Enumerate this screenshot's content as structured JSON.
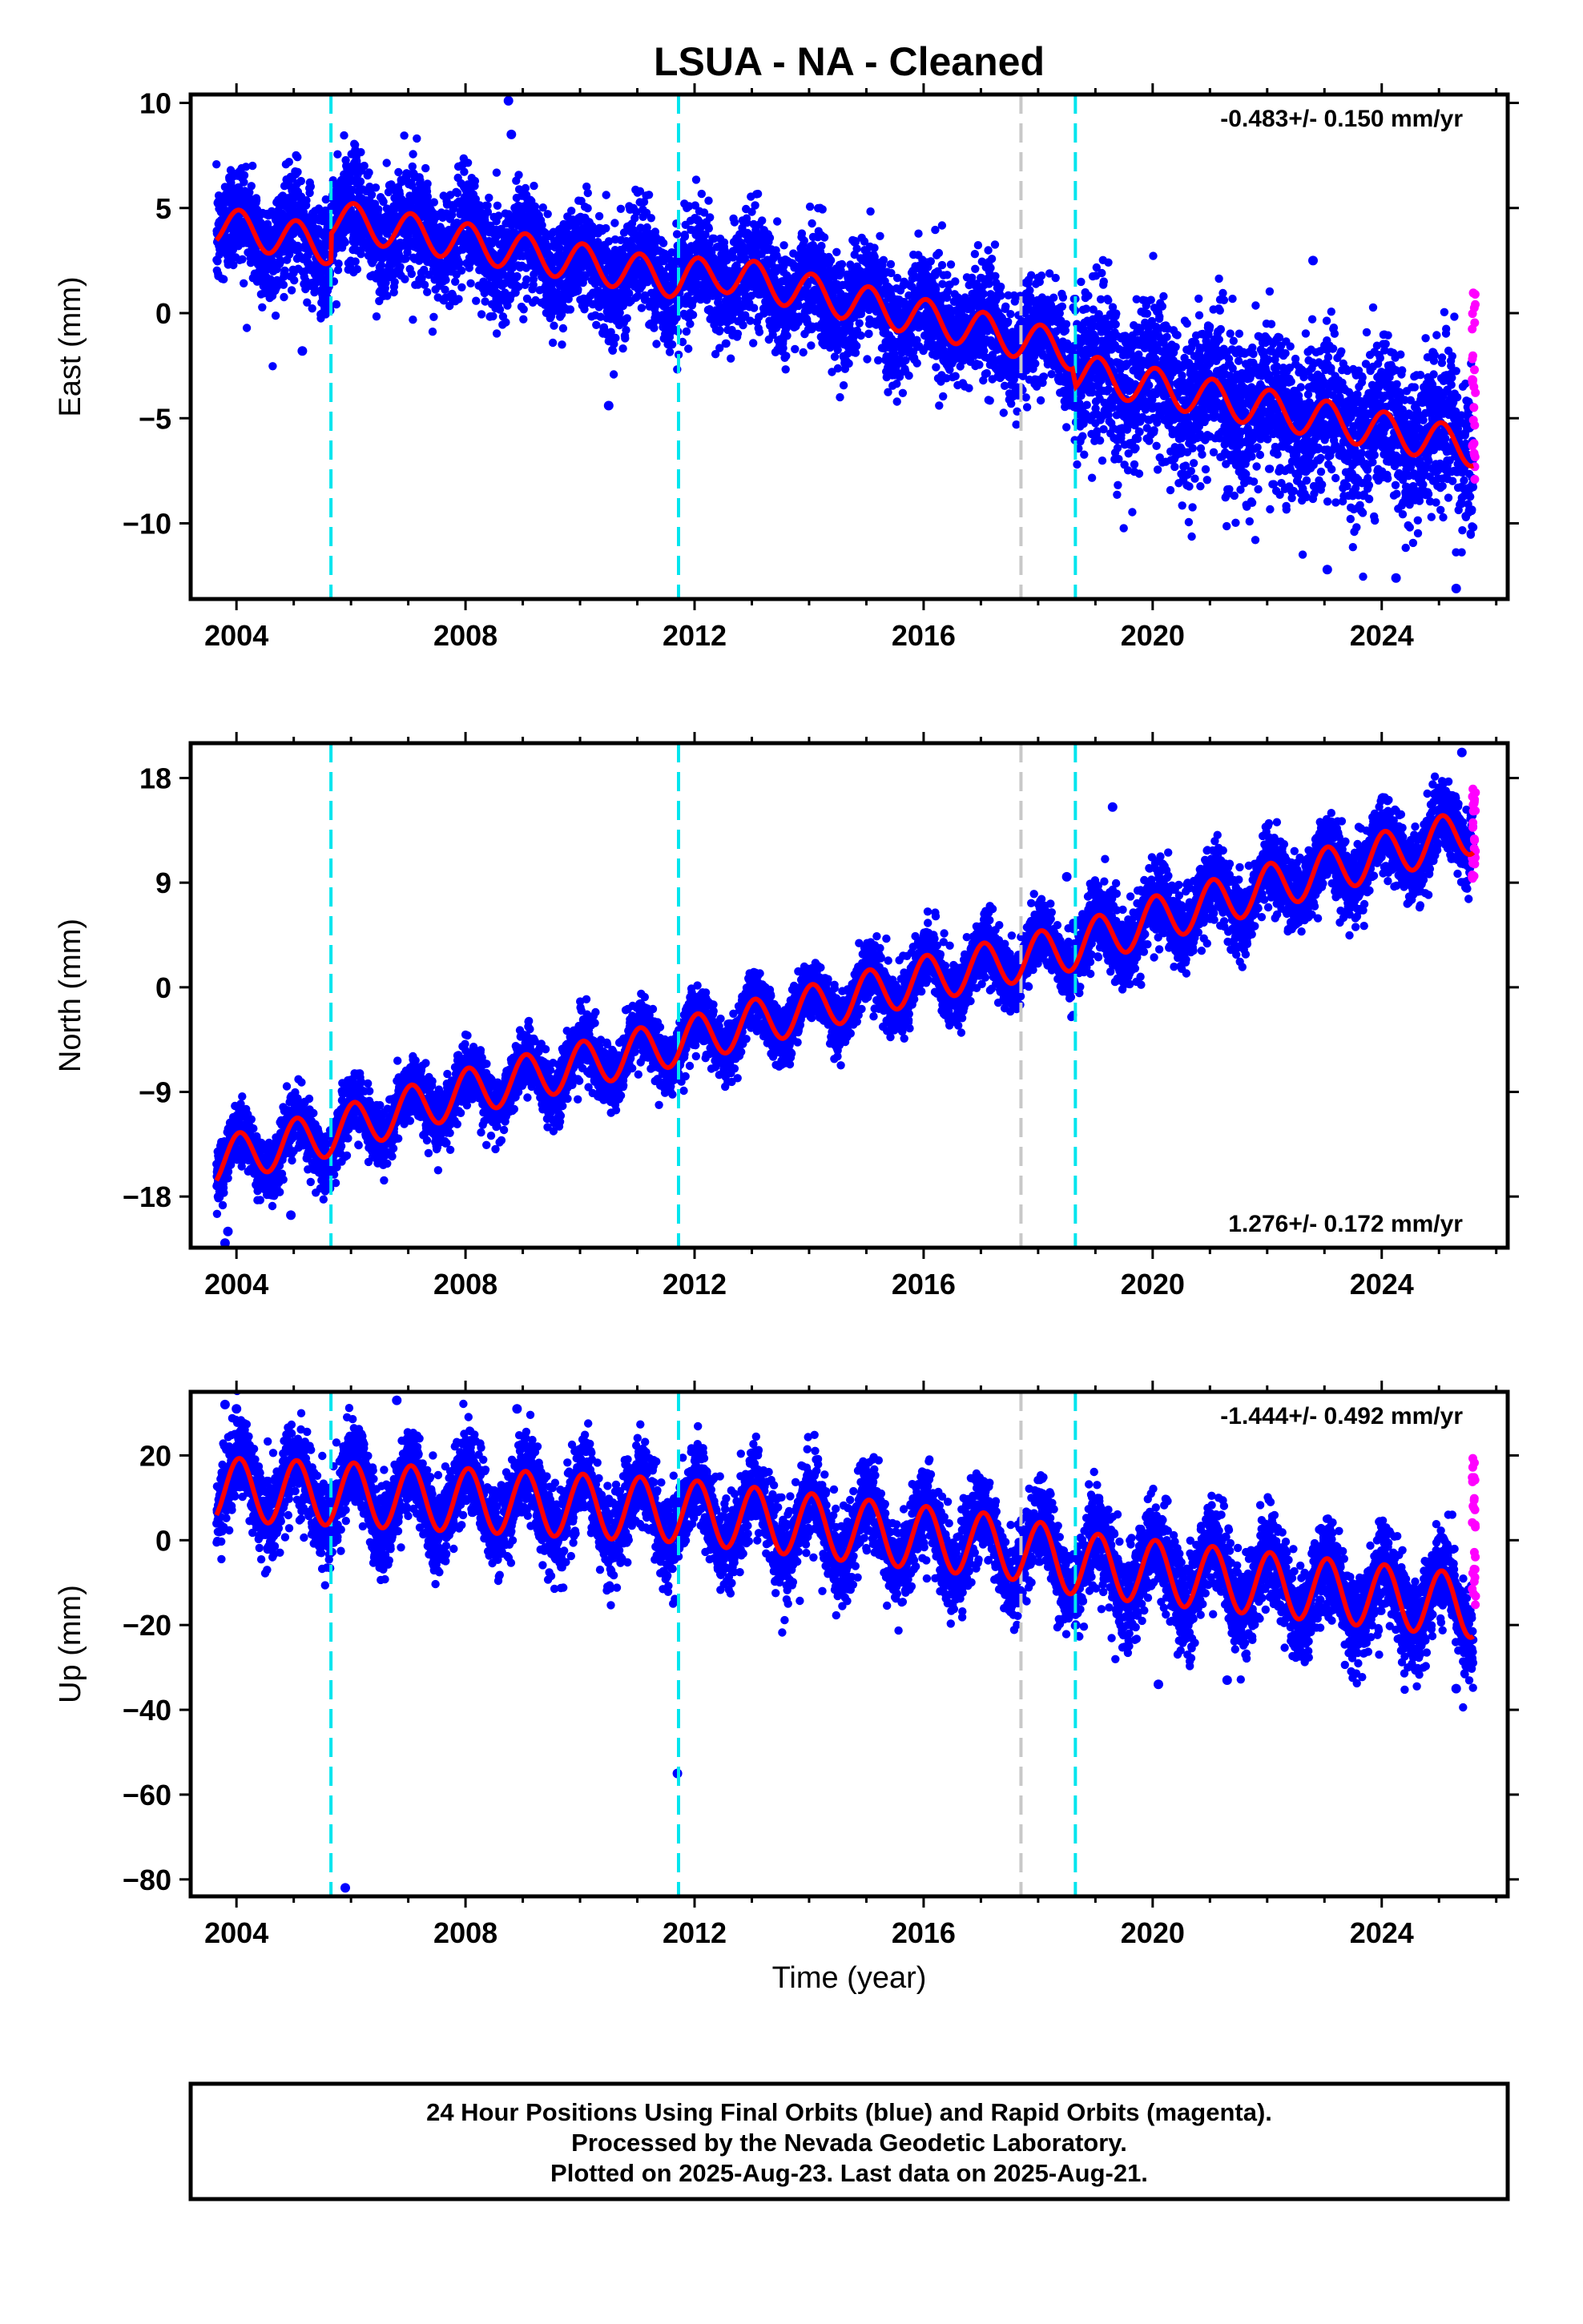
{
  "title": "LSUA  - NA - Cleaned",
  "x_label": "Time (year)",
  "footer": {
    "line1": "24 Hour Positions Using Final Orbits (blue) and Rapid Orbits (magenta).",
    "line2": "Processed by the Nevada Geodetic Laboratory.",
    "line3": "Plotted on 2025-Aug-23. Last data on 2025-Aug-21."
  },
  "colors": {
    "final_orbit_points": "#0000ff",
    "rapid_orbit_points": "#ff00ff",
    "model_fit": "#ff0000",
    "equipment_change_lines": "#00e5ee",
    "other_event_lines": "#c8c8c8"
  },
  "chart_data": [
    {
      "type": "scatter",
      "component": "east",
      "ylabel": "East (mm)",
      "rate_text": "-0.483+/- 0.150 mm/yr",
      "rate_position": "top-right",
      "xlim": [
        2003.2,
        2026.2
      ],
      "ylim": [
        -13.6,
        10.4
      ],
      "yticks": [
        -10,
        -5,
        0,
        5,
        10
      ],
      "ytick_labels": [
        "−10",
        "−5",
        "0",
        "5",
        "10"
      ],
      "xticks": [
        2004,
        2008,
        2012,
        2016,
        2020,
        2024
      ],
      "xtick_labels": [
        "2004",
        "2008",
        "2012",
        "2016",
        "2020",
        "2024"
      ],
      "vertical_lines": {
        "cyan_dashed": [
          2005.65,
          2011.72,
          2018.65
        ],
        "gray_dashed": [
          2017.7
        ]
      },
      "data_start": 2003.65,
      "data_end": 2025.6,
      "trend_points": [
        [
          2003.65,
          4.2
        ],
        [
          2005.65,
          3.2
        ],
        [
          2005.66,
          4.5
        ],
        [
          2011.72,
          1.6
        ],
        [
          2012.5,
          1.9
        ],
        [
          2018.6,
          -1.8
        ],
        [
          2018.66,
          -2.8
        ],
        [
          2025.6,
          -6.4
        ]
      ],
      "seasonal_amplitude": 0.9,
      "scatter_sd": 1.3,
      "scatter_sd_late": 1.8,
      "rapid_range": [
        -8.8,
        1.1
      ],
      "outliers": [
        [
          2008.75,
          10.1
        ],
        [
          2008.8,
          8.5
        ],
        [
          2010.5,
          -4.4
        ],
        [
          2022.8,
          2.5
        ],
        [
          2023.05,
          -12.2
        ],
        [
          2024.25,
          -12.6
        ],
        [
          2025.3,
          -13.1
        ],
        [
          2005.15,
          -1.8
        ],
        [
          2014.8,
          3.4
        ]
      ]
    },
    {
      "type": "scatter",
      "component": "north",
      "ylabel": "North (mm)",
      "rate_text": "1.276+/- 0.172 mm/yr",
      "rate_position": "bottom-right",
      "xlim": [
        2003.2,
        2026.2
      ],
      "ylim": [
        -22.4,
        21.0
      ],
      "yticks": [
        -18,
        -9,
        0,
        9,
        18
      ],
      "ytick_labels": [
        "−18",
        "−9",
        "0",
        "9",
        "18"
      ],
      "xticks": [
        2004,
        2008,
        2012,
        2016,
        2020,
        2024
      ],
      "xtick_labels": [
        "2004",
        "2008",
        "2012",
        "2016",
        "2020",
        "2024"
      ],
      "vertical_lines": {
        "cyan_dashed": [
          2005.65,
          2011.72,
          2018.65
        ],
        "gray_dashed": [
          2017.7
        ]
      },
      "data_start": 2003.65,
      "data_end": 2025.6,
      "trend_points": [
        [
          2003.65,
          -15.0
        ],
        [
          2005.65,
          -12.5
        ],
        [
          2008.0,
          -9.0
        ],
        [
          2011.72,
          -4.7
        ],
        [
          2016.0,
          0.7
        ],
        [
          2018.65,
          3.5
        ],
        [
          2020.0,
          5.8
        ],
        [
          2023.0,
          10.0
        ],
        [
          2025.6,
          13.5
        ]
      ],
      "seasonal_amplitude": 2.0,
      "scatter_sd": 1.3,
      "scatter_sd_late": 1.6,
      "rapid_range": [
        9.0,
        17.5
      ],
      "outliers": [
        [
          2003.8,
          -22.0
        ],
        [
          2003.85,
          -21.0
        ],
        [
          2004.95,
          -19.6
        ],
        [
          2025.4,
          20.2
        ],
        [
          2018.5,
          9.5
        ],
        [
          2019.3,
          15.5
        ]
      ]
    },
    {
      "type": "scatter",
      "component": "up",
      "ylabel": "Up (mm)",
      "rate_text": "-1.444+/- 0.492 mm/yr",
      "rate_position": "top-right",
      "xlim": [
        2003.2,
        2026.2
      ],
      "ylim": [
        -84.0,
        35.0
      ],
      "yticks": [
        -80,
        -60,
        -40,
        -20,
        0,
        20
      ],
      "ytick_labels": [
        "−80",
        "−60",
        "−40",
        "−20",
        "0",
        "20"
      ],
      "xticks": [
        2004,
        2008,
        2012,
        2016,
        2020,
        2024
      ],
      "xtick_labels": [
        "2004",
        "2008",
        "2012",
        "2016",
        "2020",
        "2024"
      ],
      "vertical_lines": {
        "cyan_dashed": [
          2005.65,
          2011.72,
          2018.65
        ],
        "gray_dashed": [
          2017.7
        ]
      },
      "data_start": 2003.65,
      "data_end": 2025.6,
      "trend_points": [
        [
          2003.65,
          12.0
        ],
        [
          2005.65,
          11.0
        ],
        [
          2011.72,
          7.0
        ],
        [
          2017.7,
          -2.0
        ],
        [
          2018.65,
          -5.5
        ],
        [
          2025.6,
          -15.5
        ]
      ],
      "seasonal_amplitude": 7.5,
      "scatter_sd": 5.0,
      "scatter_sd_late": 5.5,
      "rapid_range": [
        -16.0,
        20.0
      ],
      "outliers": [
        [
          2005.9,
          -82.0
        ],
        [
          2011.7,
          -55.0
        ],
        [
          2006.8,
          33.0
        ],
        [
          2003.8,
          32.0
        ],
        [
          2008.9,
          31.0
        ],
        [
          2020.1,
          -34.0
        ],
        [
          2021.3,
          -33.0
        ],
        [
          2025.3,
          -35.0
        ],
        [
          2004.0,
          31.0
        ]
      ]
    }
  ]
}
